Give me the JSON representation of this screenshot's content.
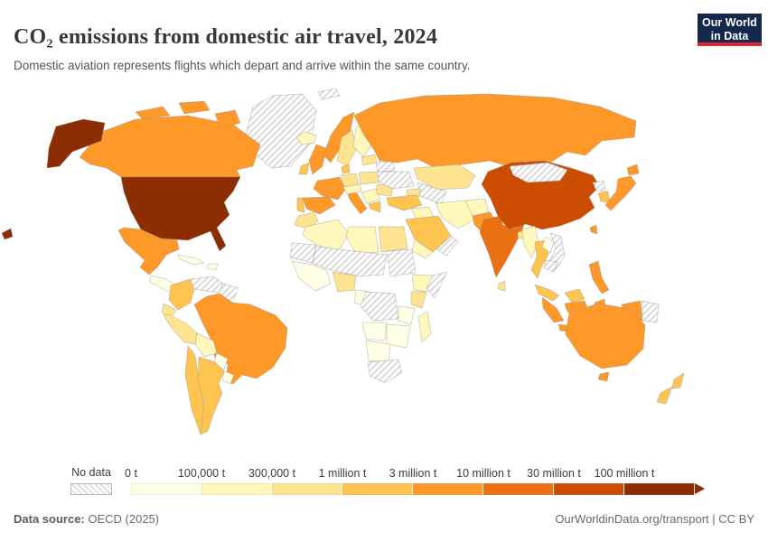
{
  "header": {
    "title": "CO₂ emissions from domestic air travel, 2024",
    "subtitle": "Domestic aviation represents flights which depart and arrive within the same country."
  },
  "logo": {
    "line1": "Our World",
    "line2": "in Data",
    "bg_color": "#12284d",
    "accent_color": "#dc262c"
  },
  "footer": {
    "source_label": "Data source:",
    "source_value": " OECD (2025)",
    "url": "OurWorldinData.org/transport",
    "divider": " | ",
    "license": "CC BY"
  },
  "chart_data": {
    "type": "heatmap",
    "variant": "world-choropleth-map",
    "title": "CO₂ emissions from domestic air travel, 2024",
    "unit": "tonnes CO₂ per year",
    "legend": {
      "no_data_label": "No data",
      "bins": [
        {
          "label": "0 t",
          "color": "#ffffe5",
          "range": "0 – 100,000 t"
        },
        {
          "label": "100,000 t",
          "color": "#fff7bc",
          "range": "100,000 – 300,000 t"
        },
        {
          "label": "300,000 t",
          "color": "#fee391",
          "range": "300,000 – 1 million t"
        },
        {
          "label": "1 million t",
          "color": "#fec44f",
          "range": "1 – 3 million t"
        },
        {
          "label": "3 million t",
          "color": "#fe9929",
          "range": "3 – 10 million t"
        },
        {
          "label": "10 million t",
          "color": "#ec7014",
          "range": "10 – 30 million t"
        },
        {
          "label": "30 million t",
          "color": "#cc4c02",
          "range": "30 – 100 million t"
        },
        {
          "label": "100 million t",
          "color": "#8c2d04",
          "range": "≥ 100 million t"
        }
      ]
    },
    "countries": [
      {
        "id": "usa",
        "name": "United States",
        "bin": 7
      },
      {
        "id": "canada",
        "name": "Canada",
        "bin": 4
      },
      {
        "id": "greenland",
        "name": "Greenland",
        "bin": -1
      },
      {
        "id": "iceland",
        "name": "Iceland",
        "bin": 1
      },
      {
        "id": "mexico",
        "name": "Mexico",
        "bin": 4
      },
      {
        "id": "centralamerica",
        "name": "Central America",
        "bin": 0
      },
      {
        "id": "cuba",
        "name": "Cuba",
        "bin": 0
      },
      {
        "id": "hispaniola",
        "name": "Hispaniola",
        "bin": 0
      },
      {
        "id": "colombia",
        "name": "Colombia",
        "bin": 3
      },
      {
        "id": "venezuela",
        "name": "Venezuela",
        "bin": -1
      },
      {
        "id": "guyanas",
        "name": "Guyana & Suriname",
        "bin": -1
      },
      {
        "id": "ecuador",
        "name": "Ecuador",
        "bin": 2
      },
      {
        "id": "peru",
        "name": "Peru",
        "bin": 2
      },
      {
        "id": "brazil",
        "name": "Brazil",
        "bin": 4
      },
      {
        "id": "bolivia",
        "name": "Bolivia",
        "bin": 1
      },
      {
        "id": "paraguay",
        "name": "Paraguay",
        "bin": 0
      },
      {
        "id": "uruguay",
        "name": "Uruguay",
        "bin": 0
      },
      {
        "id": "chile",
        "name": "Chile",
        "bin": 3
      },
      {
        "id": "argentina",
        "name": "Argentina",
        "bin": 3
      },
      {
        "id": "norway",
        "name": "Norway",
        "bin": 4
      },
      {
        "id": "sweden",
        "name": "Sweden",
        "bin": 2
      },
      {
        "id": "finland",
        "name": "Finland",
        "bin": 1
      },
      {
        "id": "uk",
        "name": "United Kingdom",
        "bin": 4
      },
      {
        "id": "ireland",
        "name": "Ireland",
        "bin": 3
      },
      {
        "id": "denmark",
        "name": "Denmark",
        "bin": 3
      },
      {
        "id": "germany",
        "name": "Germany",
        "bin": 2
      },
      {
        "id": "poland",
        "name": "Poland",
        "bin": 2
      },
      {
        "id": "france",
        "name": "France",
        "bin": 4
      },
      {
        "id": "spain",
        "name": "Spain",
        "bin": 4
      },
      {
        "id": "portugal",
        "name": "Portugal",
        "bin": 3
      },
      {
        "id": "italy",
        "name": "Italy",
        "bin": 4
      },
      {
        "id": "alpine",
        "name": "Switzerland & Austria",
        "bin": 1
      },
      {
        "id": "balkans",
        "name": "Balkans",
        "bin": 1
      },
      {
        "id": "greece",
        "name": "Greece",
        "bin": 3
      },
      {
        "id": "romania",
        "name": "Romania",
        "bin": 2
      },
      {
        "id": "baltics",
        "name": "Baltic states",
        "bin": 2
      },
      {
        "id": "belarus",
        "name": "Belarus",
        "bin": -1
      },
      {
        "id": "ukraine",
        "name": "Ukraine",
        "bin": -1
      },
      {
        "id": "svalbard",
        "name": "Svalbard",
        "bin": -1
      },
      {
        "id": "russia",
        "name": "Russia",
        "bin": 4
      },
      {
        "id": "kazakhstan",
        "name": "Kazakhstan",
        "bin": 2
      },
      {
        "id": "centralasia",
        "name": "Turkmenistan & Uzbekistan",
        "bin": -1
      },
      {
        "id": "caucasus",
        "name": "Caucasus",
        "bin": 2
      },
      {
        "id": "turkey",
        "name": "Turkey",
        "bin": 3
      },
      {
        "id": "syriairaq",
        "name": "Iraq & Syria",
        "bin": 1
      },
      {
        "id": "saudiarabia",
        "name": "Saudi Arabia",
        "bin": 3
      },
      {
        "id": "yemen",
        "name": "Yemen",
        "bin": 1
      },
      {
        "id": "oman",
        "name": "Oman",
        "bin": -1
      },
      {
        "id": "iran",
        "name": "Iran",
        "bin": 1
      },
      {
        "id": "afghanistan",
        "name": "Afghanistan",
        "bin": 1
      },
      {
        "id": "pakistan",
        "name": "Pakistan",
        "bin": 4
      },
      {
        "id": "india",
        "name": "India",
        "bin": 5
      },
      {
        "id": "srilanka",
        "name": "Sri Lanka",
        "bin": 2
      },
      {
        "id": "bangladesh",
        "name": "Bangladesh",
        "bin": 2
      },
      {
        "id": "nepal",
        "name": "Nepal",
        "bin": 1
      },
      {
        "id": "china",
        "name": "China",
        "bin": 6
      },
      {
        "id": "mongolia",
        "name": "Mongolia",
        "bin": -1
      },
      {
        "id": "northkorea",
        "name": "North Korea",
        "bin": -1
      },
      {
        "id": "southkorea",
        "name": "South Korea",
        "bin": 3
      },
      {
        "id": "japan",
        "name": "Japan",
        "bin": 4
      },
      {
        "id": "taiwan",
        "name": "Taiwan",
        "bin": 4
      },
      {
        "id": "myanmar",
        "name": "Myanmar",
        "bin": 1
      },
      {
        "id": "thailand",
        "name": "Thailand",
        "bin": 3
      },
      {
        "id": "laos",
        "name": "Laos",
        "bin": 0
      },
      {
        "id": "vietnam",
        "name": "Vietnam",
        "bin": -1
      },
      {
        "id": "cambodia",
        "name": "Cambodia",
        "bin": -1
      },
      {
        "id": "malaysia",
        "name": "Malaysia",
        "bin": 3
      },
      {
        "id": "indonesia",
        "name": "Indonesia",
        "bin": 4
      },
      {
        "id": "png",
        "name": "Papua New Guinea",
        "bin": -1
      },
      {
        "id": "philippines",
        "name": "Philippines",
        "bin": 4
      },
      {
        "id": "morocco",
        "name": "Morocco",
        "bin": 2
      },
      {
        "id": "algeria",
        "name": "Algeria",
        "bin": 1
      },
      {
        "id": "libya",
        "name": "Libya",
        "bin": 1
      },
      {
        "id": "egypt",
        "name": "Egypt",
        "bin": 2
      },
      {
        "id": "mauritania",
        "name": "Mauritania",
        "bin": -1
      },
      {
        "id": "sahel",
        "name": "Mali, Niger & Chad",
        "bin": -1
      },
      {
        "id": "sudan",
        "name": "Sudan",
        "bin": -1
      },
      {
        "id": "westafrica",
        "name": "West Africa",
        "bin": 0
      },
      {
        "id": "nigeria",
        "name": "Nigeria",
        "bin": 2
      },
      {
        "id": "centralafrica",
        "name": "Cameroon & Gabon",
        "bin": 0
      },
      {
        "id": "ethiopia",
        "name": "Ethiopia",
        "bin": 1
      },
      {
        "id": "somalia",
        "name": "Somalia",
        "bin": -1
      },
      {
        "id": "kenya",
        "name": "Kenya",
        "bin": 2
      },
      {
        "id": "drc",
        "name": "Democratic Republic of Congo",
        "bin": -1
      },
      {
        "id": "tanzania",
        "name": "Tanzania",
        "bin": 0
      },
      {
        "id": "angola",
        "name": "Angola",
        "bin": 0
      },
      {
        "id": "zambezi",
        "name": "Zambia & Mozambique",
        "bin": 0
      },
      {
        "id": "namibia",
        "name": "Namibia & Botswana",
        "bin": 0
      },
      {
        "id": "southafrica",
        "name": "South Africa",
        "bin": -1
      },
      {
        "id": "madagascar",
        "name": "Madagascar",
        "bin": 1
      },
      {
        "id": "australia",
        "name": "Australia",
        "bin": 4
      },
      {
        "id": "newzealand",
        "name": "New Zealand",
        "bin": 3
      }
    ]
  }
}
